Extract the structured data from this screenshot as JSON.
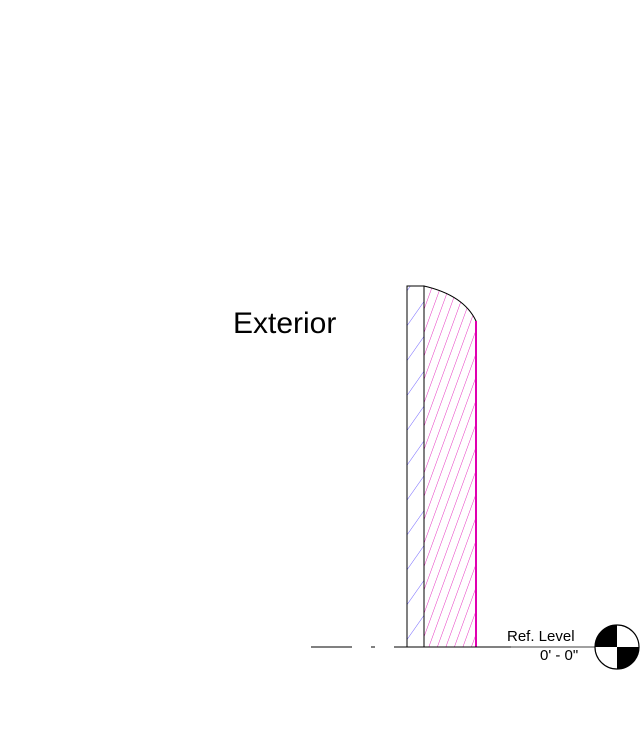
{
  "section": {
    "side_label": "Exterior"
  },
  "level": {
    "name": "Ref. Level",
    "elevation": "0' - 0\""
  },
  "colors": {
    "finish_hatch": "#5040ff",
    "core_hatch": "#e000b0",
    "outline": "#000000",
    "background": "#ffffff"
  }
}
